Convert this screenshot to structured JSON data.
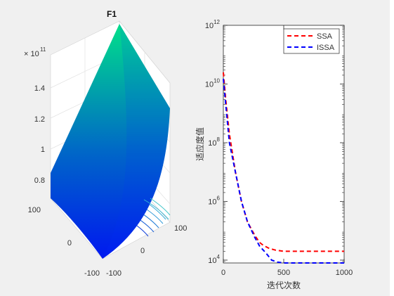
{
  "chart_data": [
    {
      "type": "surface",
      "title": "F1",
      "z_exponent_label": "× 10",
      "z_exponent_power": "11",
      "z_ticks": [
        "0.8",
        "1",
        "1.2",
        "1.4"
      ],
      "x_ticks": [
        "-100",
        "0",
        "100"
      ],
      "y_ticks": [
        "-100",
        "0",
        "100"
      ],
      "colormap": [
        "#0010ff",
        "#00d890"
      ]
    },
    {
      "type": "line",
      "y_scale": "log",
      "ylabel": "适应度值",
      "xlabel": "迭代次数",
      "xlim": [
        0,
        1000
      ],
      "ylim": [
        8000,
        1000000000000
      ],
      "x_ticks": [
        "0",
        "500",
        "1000"
      ],
      "x_tick_values": [
        0,
        500,
        1000
      ],
      "y_tick_values": [
        10000,
        1000000,
        100000000,
        10000000000,
        1000000000000
      ],
      "y_ticks": [
        {
          "base": "10",
          "exp": "4"
        },
        {
          "base": "10",
          "exp": "6"
        },
        {
          "base": "10",
          "exp": "8"
        },
        {
          "base": "10",
          "exp": "10"
        },
        {
          "base": "10",
          "exp": "12"
        }
      ],
      "legend_position": "top-right",
      "series": [
        {
          "name": "SSA",
          "color": "#ff0000",
          "x": [
            0,
            20,
            50,
            100,
            150,
            200,
            260,
            300,
            330,
            380,
            430,
            500,
            600,
            1000
          ],
          "y": [
            25000000000,
            3000000000,
            200000000,
            10000000,
            1000000,
            200000,
            70000,
            40000,
            32000,
            25000,
            22000,
            20000,
            20000,
            20000
          ]
        },
        {
          "name": "ISSA",
          "color": "#0000ff",
          "x": [
            0,
            20,
            50,
            100,
            150,
            200,
            260,
            300,
            350,
            400,
            450,
            500,
            1000
          ],
          "y": [
            15000000000,
            2000000000,
            100000000,
            10000000,
            1000000,
            200000,
            60000,
            30000,
            18000,
            10000,
            8500,
            8000,
            8000
          ]
        }
      ]
    }
  ]
}
